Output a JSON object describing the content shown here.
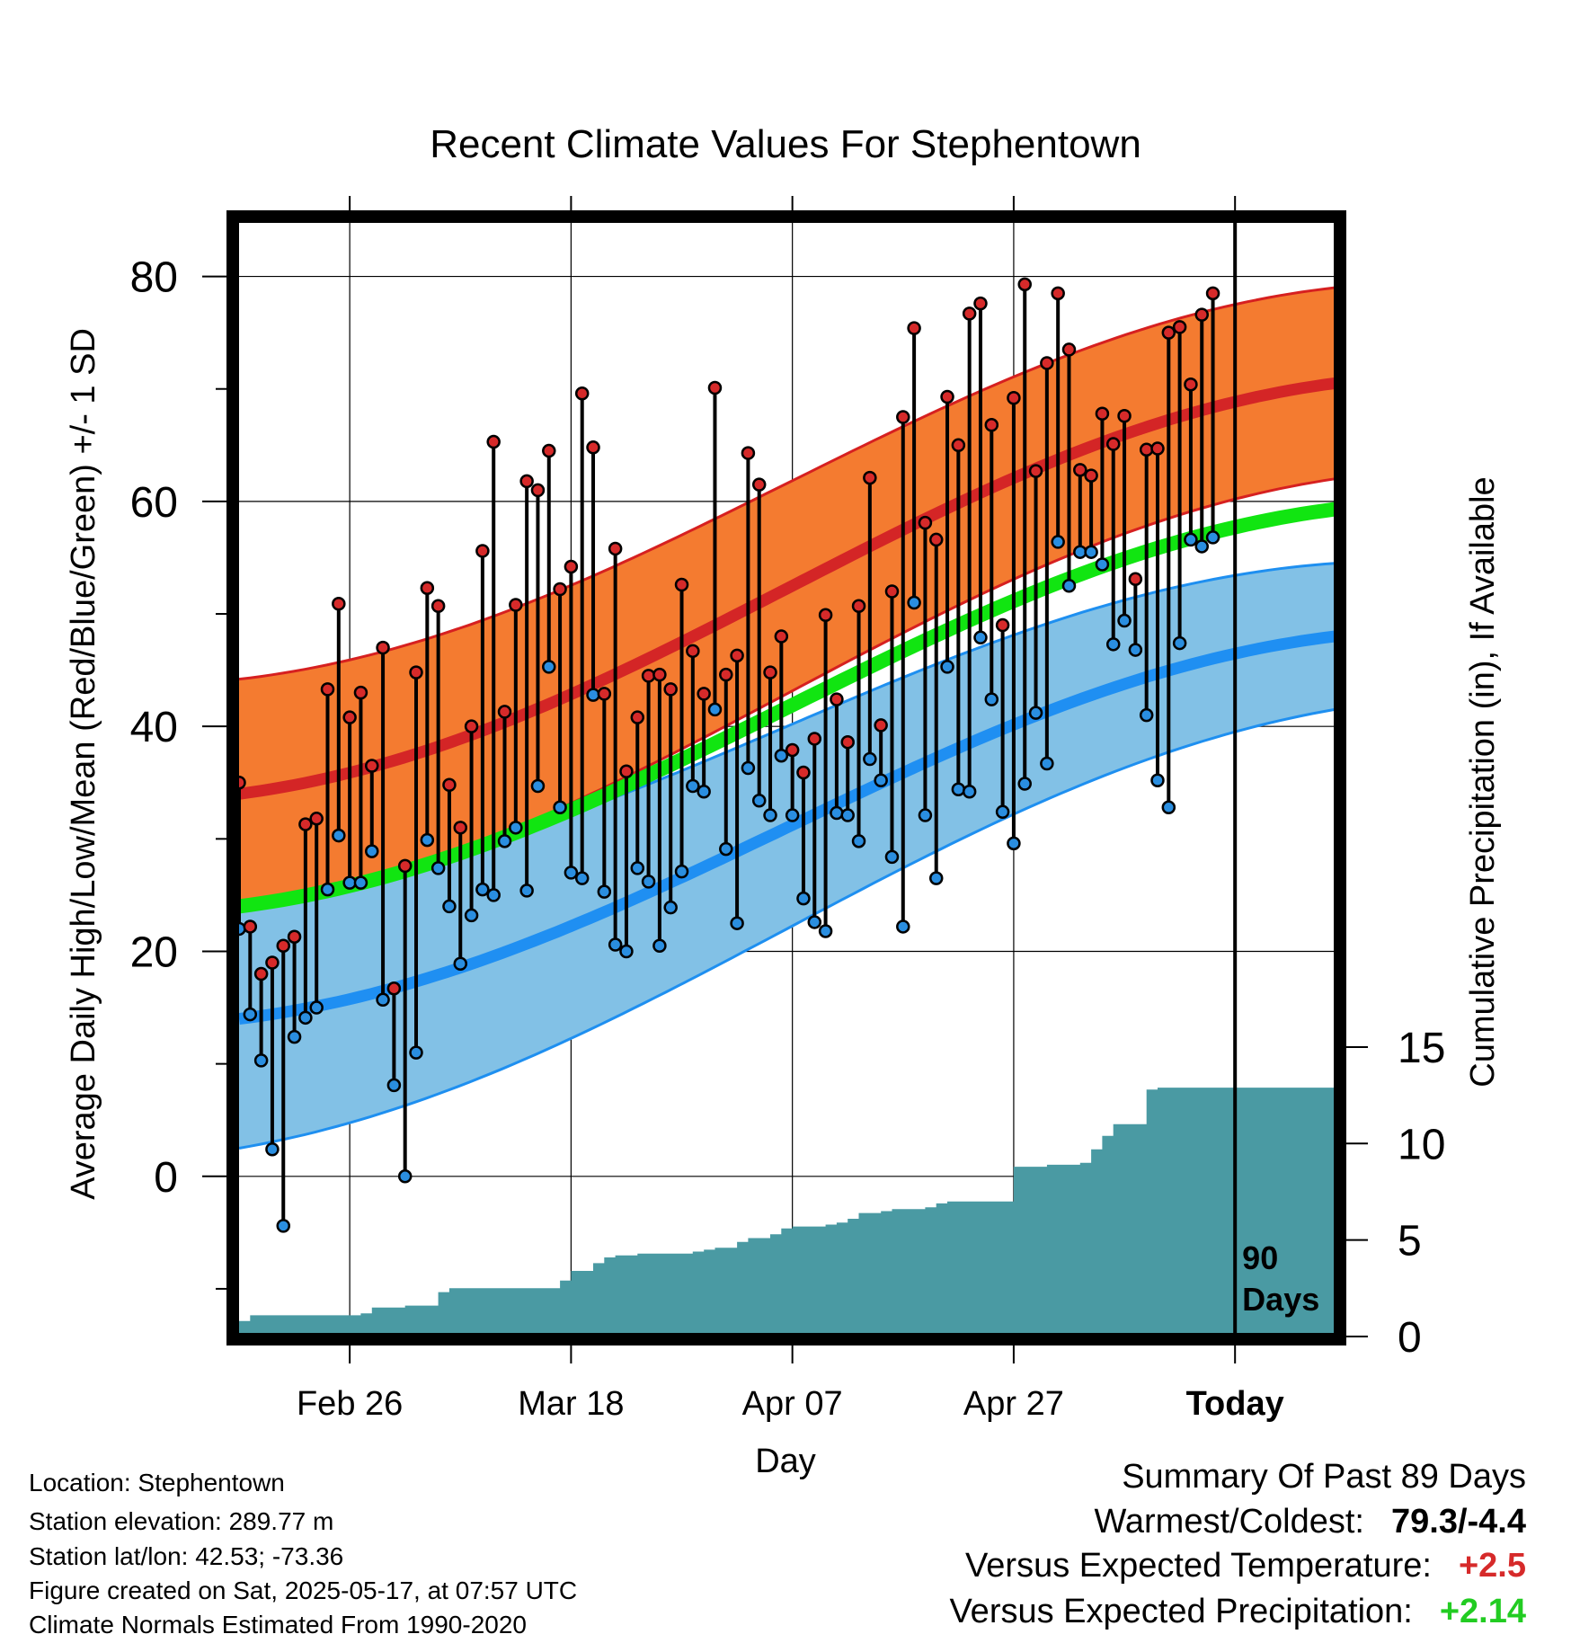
{
  "chart_data": {
    "type": "line",
    "title": "Recent Climate Values For Stephentown",
    "xlabel": "Day",
    "ylabel": "Average Daily High/Low/Mean (Red/Blue/Green) +/- 1 SD",
    "y2label": "Cumulative Precipitation (in), If Available",
    "ylim": [
      -14,
      85
    ],
    "y2lim": [
      0,
      30
    ],
    "y_ticks": [
      0,
      20,
      40,
      60,
      80
    ],
    "y2_ticks": [
      0,
      5,
      10,
      15
    ],
    "x_tick_labels": [
      {
        "day": 10,
        "label": "Feb 26"
      },
      {
        "day": 30,
        "label": "Mar 18"
      },
      {
        "day": 50,
        "label": "Apr 07"
      },
      {
        "day": 70,
        "label": "Apr 27"
      },
      {
        "day": 90,
        "label": "Today"
      }
    ],
    "x_range": [
      0,
      99
    ],
    "today_day": 90,
    "today_annotation": [
      "90",
      "Days"
    ],
    "grid": true,
    "colors": {
      "high_band": "#f47b30",
      "high_edge": "#d62020",
      "high_mean": "#d42526",
      "low_band": "#82c1e6",
      "low_edge": "#1e8ff0",
      "low_mean": "#1f8ff2",
      "mean_line": "#11e511",
      "precip": "#4a9aa3",
      "marker_high": "#d62a2a",
      "marker_low": "#2a8ee0"
    },
    "normal_high": {
      "mean_start": 34,
      "mean_end": 70.5,
      "sd_start": 10.2,
      "sd_end": 8.5
    },
    "normal_low": {
      "mean_start": 14,
      "mean_end": 48,
      "sd_start": 11.5,
      "sd_end": 6.5
    },
    "normal_mean": {
      "start": 24,
      "end": 59.3
    },
    "daily_high": [
      35,
      22.2,
      18,
      19,
      20.5,
      21.3,
      31.3,
      31.8,
      43.3,
      50.9,
      40.8,
      43,
      36.5,
      47,
      16.7,
      27.6,
      44.8,
      52.3,
      50.7,
      34.8,
      31,
      40,
      55.6,
      65.3,
      41.3,
      50.8,
      61.8,
      61,
      64.5,
      52.2,
      54.2,
      69.6,
      64.8,
      42.9,
      55.8,
      36,
      40.8,
      44.5,
      44.6,
      43.3,
      52.6,
      46.7,
      42.9,
      70.1,
      44.6,
      46.3,
      64.3,
      61.5,
      44.8,
      48,
      37.9,
      35.9,
      38.9,
      49.9,
      42.4,
      38.6,
      50.7,
      62.1,
      40.1,
      52,
      67.5,
      75.4,
      58.1,
      56.6,
      69.3,
      65,
      76.7,
      77.6,
      66.8,
      49,
      69.2,
      79.3,
      62.7,
      72.3,
      78.5,
      73.5,
      62.8,
      62.3,
      67.8,
      65.1,
      67.6,
      53.1,
      64.6,
      64.7,
      75,
      75.5,
      70.4,
      76.6,
      78.5
    ],
    "daily_low": [
      22,
      14.4,
      10.3,
      2.4,
      -4.4,
      12.4,
      14.1,
      15,
      25.5,
      30.3,
      26.1,
      26.1,
      28.9,
      15.7,
      8.1,
      0,
      11,
      29.9,
      27.4,
      24,
      18.9,
      23.2,
      25.5,
      25,
      29.8,
      31,
      25.4,
      34.7,
      45.3,
      32.8,
      27,
      26.5,
      42.8,
      25.3,
      20.6,
      20,
      27.4,
      26.2,
      20.5,
      23.9,
      27.1,
      34.7,
      34.2,
      41.5,
      29.1,
      22.5,
      36.3,
      33.4,
      32.1,
      37.4,
      32.1,
      24.7,
      22.6,
      21.8,
      32.3,
      32.1,
      29.8,
      37.1,
      35.2,
      28.4,
      22.2,
      51,
      32.1,
      26.5,
      45.3,
      34.4,
      34.2,
      47.9,
      42.4,
      32.4,
      29.6,
      34.9,
      41.2,
      36.7,
      56.4,
      52.5,
      55.5,
      55.5,
      54.4,
      47.3,
      49.4,
      46.8,
      41,
      35.2,
      32.8,
      47.4,
      56.6,
      56,
      56.8
    ],
    "precip_cumulative": [
      0.8,
      1.1,
      1.1,
      1.1,
      1.1,
      1.1,
      1.1,
      1.1,
      1.1,
      1.1,
      1.1,
      1.2,
      1.5,
      1.5,
      1.5,
      1.6,
      1.6,
      1.6,
      2.3,
      2.5,
      2.5,
      2.5,
      2.5,
      2.5,
      2.5,
      2.5,
      2.5,
      2.5,
      2.5,
      2.9,
      3.4,
      3.4,
      3.8,
      4.1,
      4.2,
      4.2,
      4.3,
      4.3,
      4.3,
      4.3,
      4.3,
      4.4,
      4.5,
      4.6,
      4.6,
      4.9,
      5.1,
      5.1,
      5.3,
      5.6,
      5.7,
      5.7,
      5.7,
      5.8,
      5.9,
      6.1,
      6.4,
      6.4,
      6.5,
      6.6,
      6.6,
      6.6,
      6.7,
      6.9,
      7,
      7,
      7,
      7,
      7,
      7,
      8.8,
      8.8,
      8.8,
      8.9,
      8.9,
      8.9,
      9,
      9.7,
      10.4,
      11,
      11,
      11,
      12.8,
      12.9,
      12.9,
      12.9,
      12.9,
      12.9,
      12.9,
      12.9,
      12.9,
      12.9,
      12.9,
      12.9,
      12.9,
      12.9,
      12.9,
      12.9,
      12.9,
      12.9
    ]
  },
  "location_info": {
    "location": "Location: Stephentown",
    "elevation": "Station elevation: 289.77 m",
    "latlon": "Station lat/lon: 42.53; -73.36",
    "created": "Figure created on Sat, 2025-05-17, at 07:57 UTC",
    "normals": "Climate Normals Estimated From 1990-2020"
  },
  "summary": {
    "title": "Summary Of Past 89 Days",
    "warmest_label": "Warmest/Coldest:",
    "warmest_value": "79.3/-4.4",
    "temp_label": "Versus Expected Temperature:",
    "temp_value": "+2.5",
    "temp_color": "#d62a2a",
    "precip_label": "Versus Expected Precipitation:",
    "precip_value": "+2.14",
    "precip_color": "#22cc22"
  }
}
